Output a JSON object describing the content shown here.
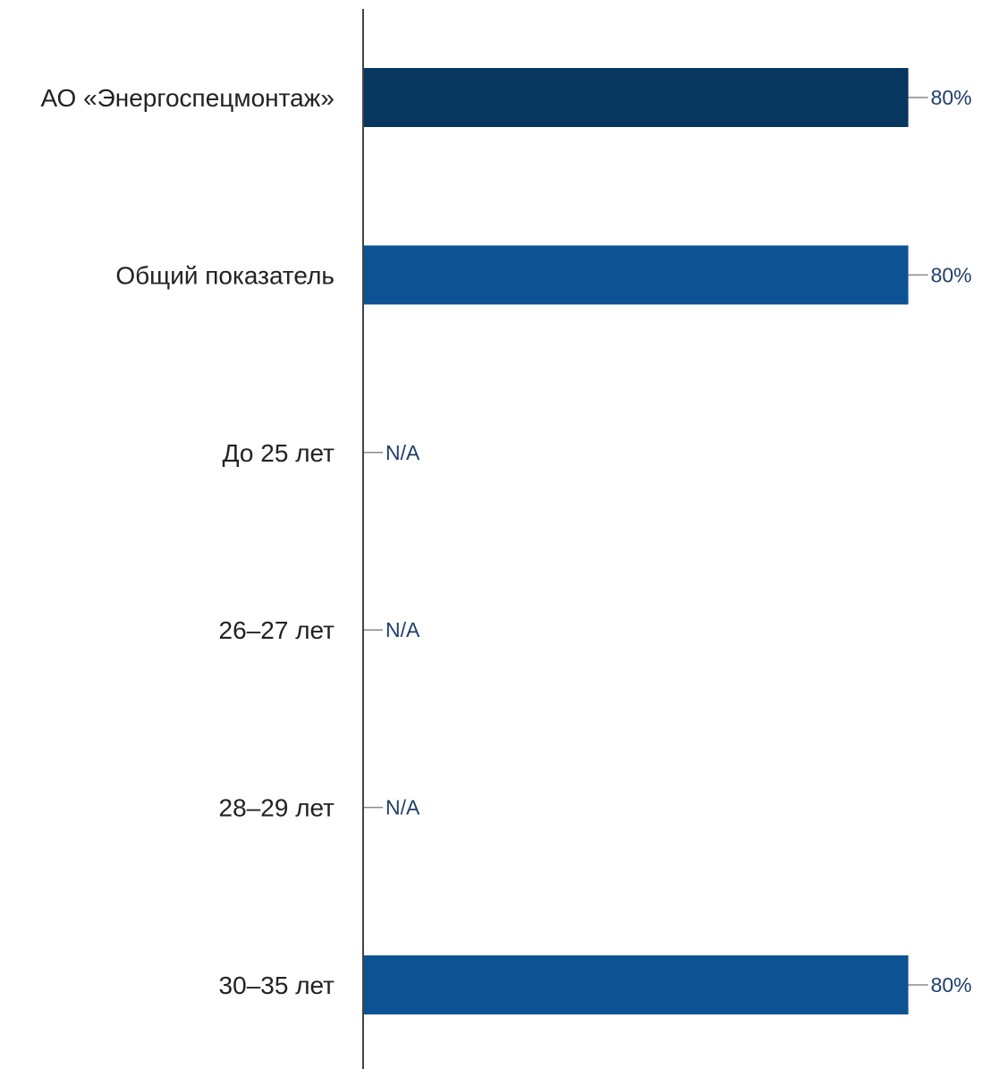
{
  "chart_data": {
    "type": "bar",
    "orientation": "horizontal",
    "categories": [
      "АО «Энергоспецмонтаж»",
      "Общий показатель",
      "До 25 лет",
      "26–27 лет",
      "28–29 лет",
      "30–35 лет"
    ],
    "values": [
      80,
      80,
      null,
      null,
      null,
      80
    ],
    "value_labels": [
      "80%",
      "80%",
      "N/A",
      "N/A",
      "N/A",
      "80%"
    ],
    "xlim": [
      0,
      100
    ],
    "grid": false,
    "title": "",
    "xlabel": "",
    "ylabel": ""
  },
  "colors": {
    "highlight_bar": "#07365f",
    "bar": "#0d5394",
    "axis": "#444444",
    "leader": "#888888",
    "value_text": "#1f3f6b",
    "label_text": "#222222"
  }
}
